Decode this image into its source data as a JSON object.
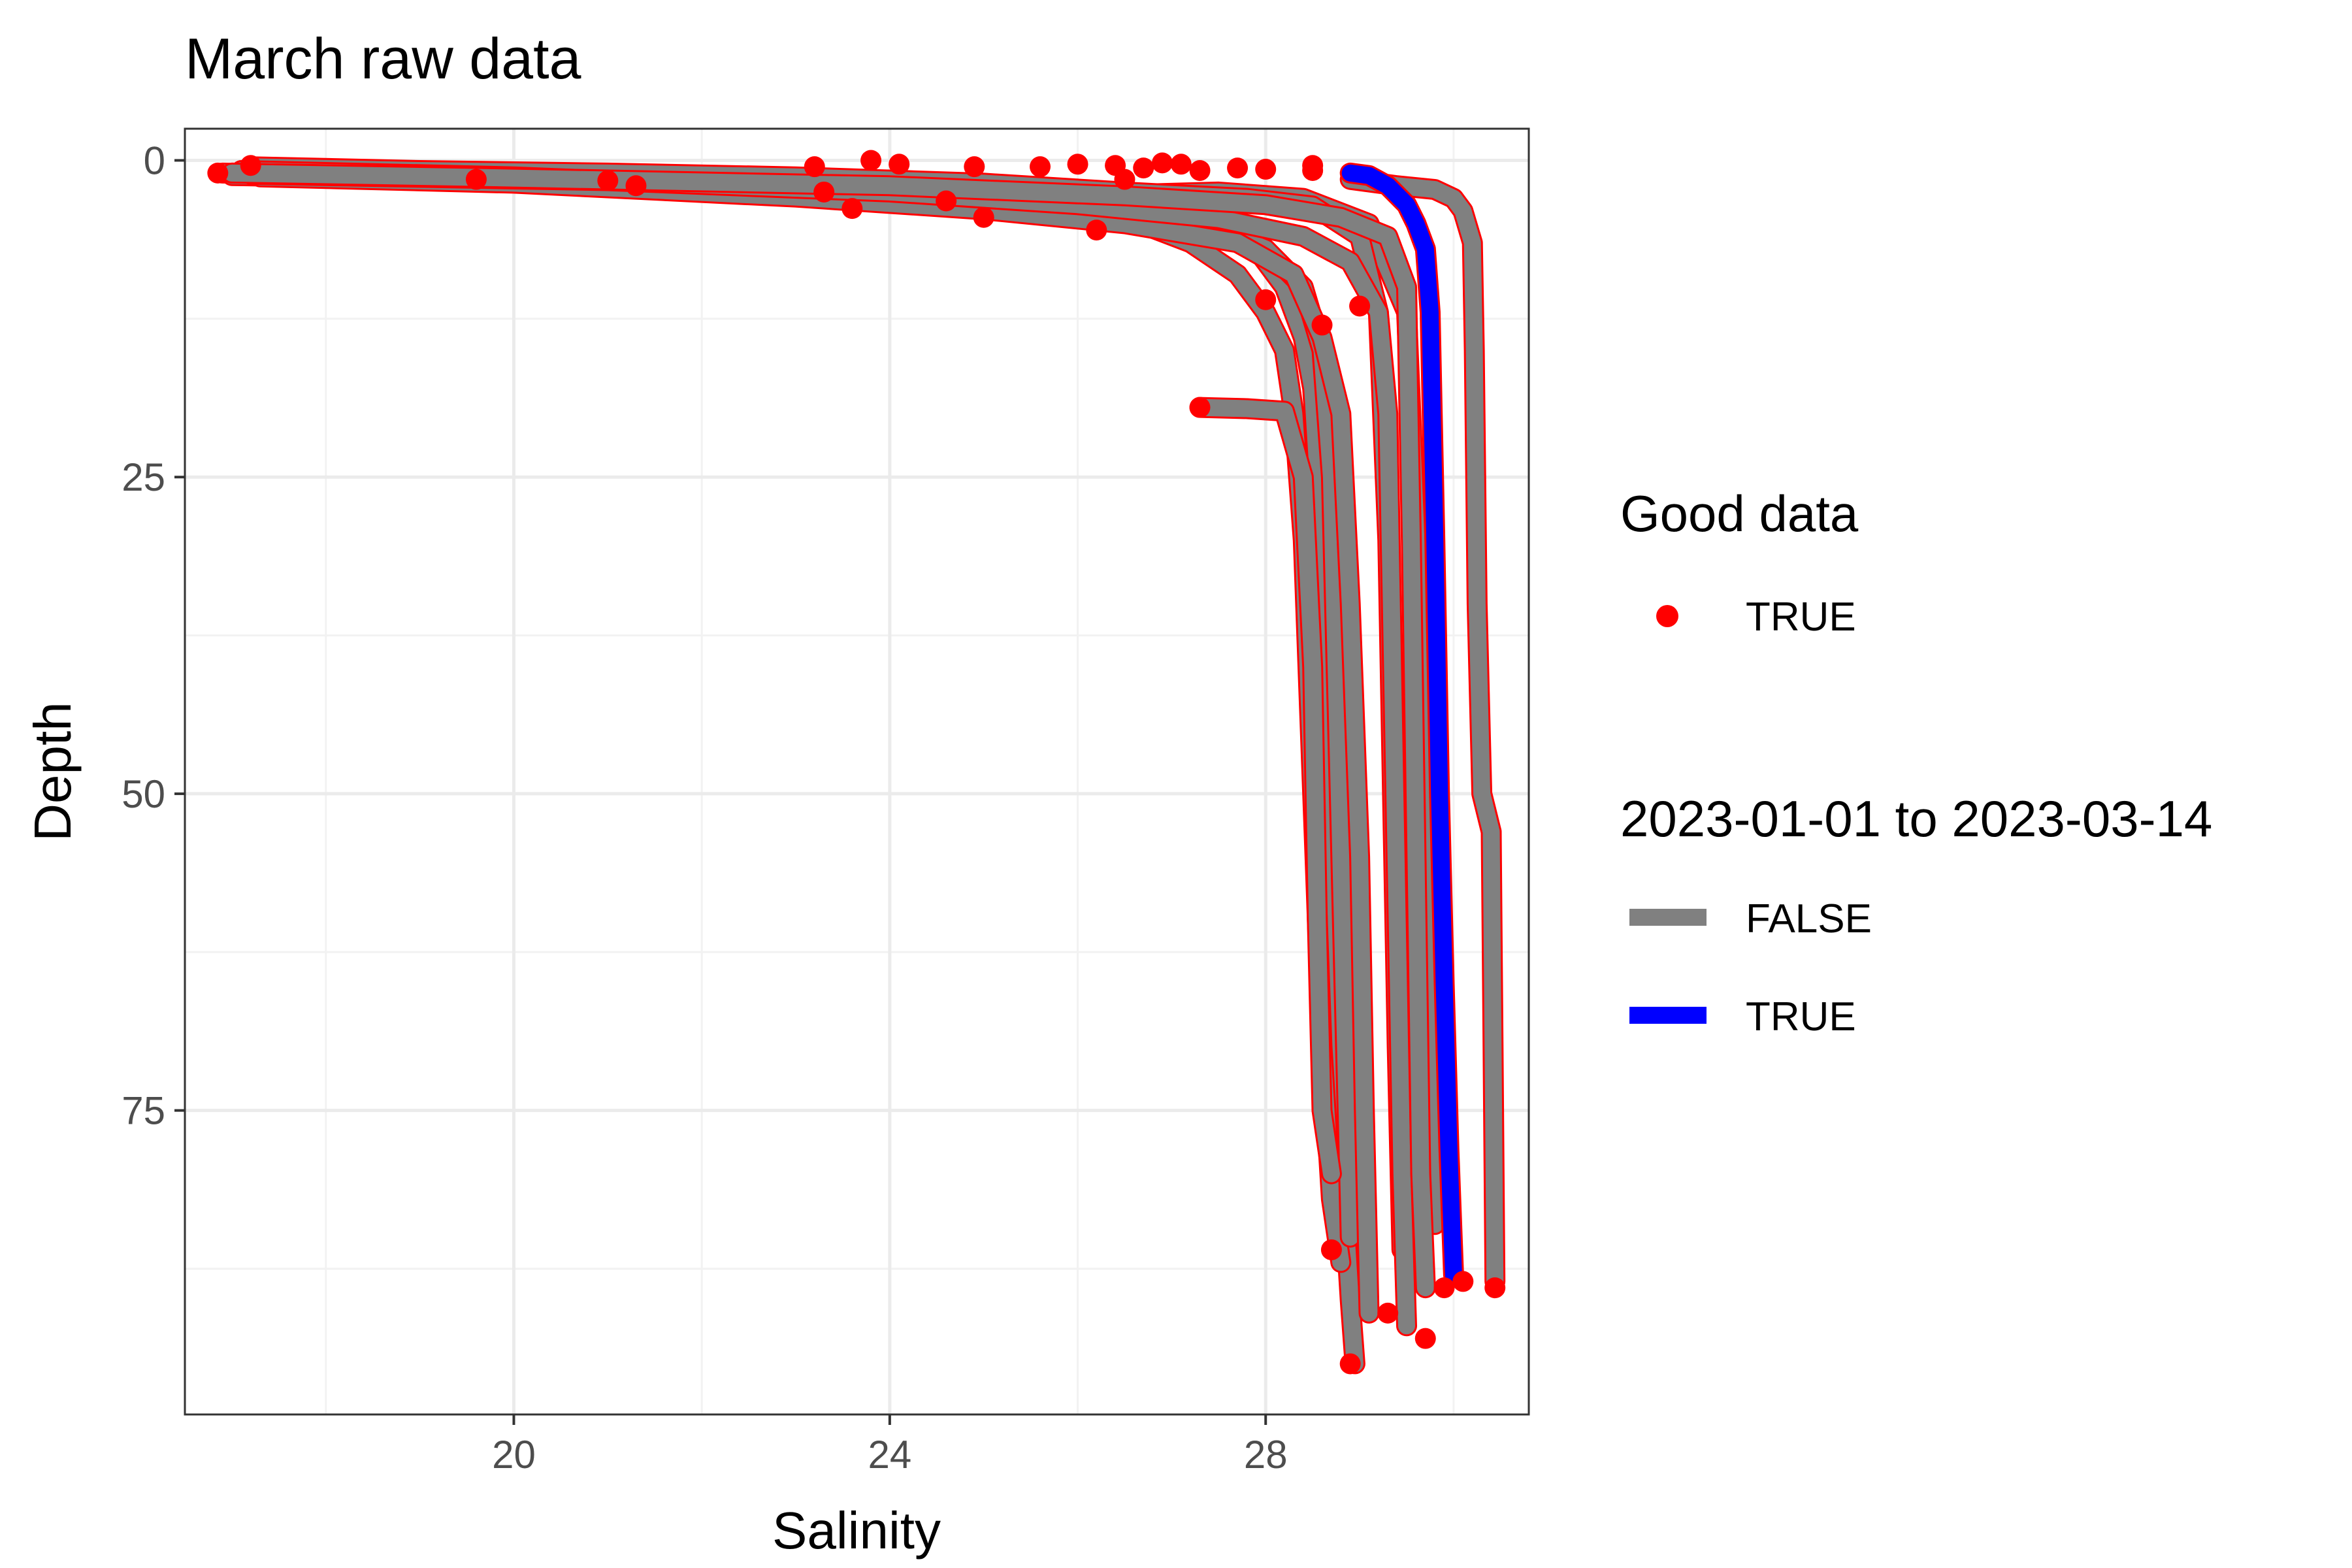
{
  "chart_data": {
    "type": "line",
    "title": "March raw data",
    "xlabel": "Salinity",
    "ylabel": "Depth",
    "xlim": [
      16.5,
      30.8
    ],
    "ylim": [
      99,
      -2.5
    ],
    "y_reversed": true,
    "x_ticks": [
      "20",
      "24",
      "28"
    ],
    "y_ticks": [
      "0",
      "25",
      "50",
      "75"
    ],
    "grid": true,
    "legend_placement": "right",
    "legends": [
      {
        "title": "Good data",
        "entries": [
          {
            "label": "TRUE",
            "kind": "point",
            "color": "#ff0000"
          }
        ]
      },
      {
        "title": "2023-01-01 to 2023-03-14",
        "entries": [
          {
            "label": "FALSE",
            "kind": "line",
            "color": "#808080"
          },
          {
            "label": "TRUE",
            "kind": "line",
            "color": "#0000ff"
          }
        ]
      }
    ],
    "series": [
      {
        "group": "FALSE",
        "color": "#808080",
        "points": [
          [
            16.9,
            1
          ],
          [
            18.5,
            1.2
          ],
          [
            20,
            1.4
          ],
          [
            22,
            1.7
          ],
          [
            24,
            2.2
          ],
          [
            26,
            2.8
          ],
          [
            27.5,
            2.5
          ],
          [
            28.4,
            3
          ],
          [
            29.1,
            5
          ],
          [
            29.5,
            12
          ],
          [
            29.6,
            30
          ],
          [
            29.7,
            50
          ],
          [
            29.75,
            70
          ],
          [
            29.8,
            84
          ]
        ]
      },
      {
        "group": "FALSE",
        "color": "#808080",
        "points": [
          [
            17.2,
            0.5
          ],
          [
            19,
            0.8
          ],
          [
            21,
            1
          ],
          [
            23,
            1.3
          ],
          [
            25,
            1.8
          ],
          [
            26.5,
            2.5
          ],
          [
            27.8,
            3
          ],
          [
            28.5,
            3.6
          ],
          [
            29,
            6
          ],
          [
            29.2,
            12
          ],
          [
            29.3,
            30
          ],
          [
            29.35,
            50
          ],
          [
            29.4,
            70
          ],
          [
            29.45,
            86
          ]
        ]
      },
      {
        "group": "FALSE",
        "color": "#808080",
        "points": [
          [
            17.0,
            1.2
          ],
          [
            19.5,
            1.5
          ],
          [
            21.5,
            1.9
          ],
          [
            23.5,
            2.6
          ],
          [
            25,
            3.5
          ],
          [
            26,
            4
          ],
          [
            27,
            4.6
          ],
          [
            27.8,
            6
          ],
          [
            28.2,
            10
          ],
          [
            28.4,
            14
          ],
          [
            28.5,
            18
          ],
          [
            28.6,
            30
          ],
          [
            28.7,
            50
          ],
          [
            28.75,
            65
          ],
          [
            28.8,
            78
          ],
          [
            28.9,
            90
          ],
          [
            28.95,
            95
          ]
        ]
      },
      {
        "group": "FALSE",
        "color": "#808080",
        "points": [
          [
            17.1,
            0.8
          ],
          [
            20,
            1.3
          ],
          [
            23,
            2.2
          ],
          [
            25.5,
            3.3
          ],
          [
            26.6,
            4.8
          ],
          [
            27.2,
            6.5
          ],
          [
            27.7,
            9
          ],
          [
            28,
            12
          ],
          [
            28.2,
            15
          ],
          [
            28.3,
            20
          ],
          [
            28.4,
            30
          ],
          [
            28.5,
            50
          ],
          [
            28.6,
            70
          ],
          [
            28.7,
            82
          ],
          [
            28.8,
            87
          ]
        ]
      },
      {
        "group": "FALSE",
        "color": "#808080",
        "points": [
          [
            17.0,
            1
          ],
          [
            20.5,
            1.5
          ],
          [
            23.5,
            2.3
          ],
          [
            25.5,
            3.4
          ],
          [
            26.8,
            4.4
          ],
          [
            27.5,
            5.5
          ],
          [
            28,
            7
          ],
          [
            28.4,
            10
          ],
          [
            28.6,
            15
          ],
          [
            28.7,
            25
          ],
          [
            28.75,
            40
          ],
          [
            28.8,
            55
          ],
          [
            28.85,
            70
          ],
          [
            28.9,
            85
          ]
        ]
      },
      {
        "group": "FALSE",
        "color": "#808080",
        "points": [
          [
            17.3,
            1.3
          ],
          [
            20,
            1.8
          ],
          [
            23,
            2.9
          ],
          [
            25,
            3.9
          ],
          [
            26.5,
            5
          ],
          [
            27.7,
            6.5
          ],
          [
            28.3,
            9
          ],
          [
            28.6,
            14
          ],
          [
            28.8,
            20
          ],
          [
            28.9,
            35
          ],
          [
            29,
            55
          ],
          [
            29.05,
            75
          ],
          [
            29.1,
            91
          ]
        ]
      },
      {
        "group": "FALSE",
        "color": "#808080",
        "points": [
          [
            17.2,
            1.1
          ],
          [
            21,
            1.6
          ],
          [
            24,
            2.5
          ],
          [
            26,
            3.5
          ],
          [
            27.5,
            4.6
          ],
          [
            28.4,
            6
          ],
          [
            28.9,
            8
          ],
          [
            29.2,
            12
          ],
          [
            29.3,
            20
          ],
          [
            29.35,
            40
          ],
          [
            29.4,
            60
          ],
          [
            29.45,
            80
          ],
          [
            29.5,
            92
          ]
        ]
      },
      {
        "group": "FALSE",
        "color": "#808080",
        "points": [
          [
            17.0,
            1
          ],
          [
            20,
            1.4
          ],
          [
            24,
            2
          ],
          [
            26.5,
            2.8
          ],
          [
            28,
            3.5
          ],
          [
            28.8,
            4.5
          ],
          [
            29.3,
            6
          ],
          [
            29.5,
            10
          ],
          [
            29.55,
            30
          ],
          [
            29.6,
            55
          ],
          [
            29.65,
            80
          ],
          [
            29.7,
            89
          ]
        ]
      },
      {
        "group": "FALSE",
        "color": "#808080",
        "points": [
          [
            27.3,
            19.5
          ],
          [
            27.8,
            19.6
          ],
          [
            28.2,
            19.8
          ],
          [
            28.4,
            25
          ],
          [
            28.5,
            40
          ],
          [
            28.55,
            60
          ],
          [
            28.6,
            75
          ],
          [
            28.7,
            80
          ]
        ]
      },
      {
        "group": "FALSE",
        "color": "#808080",
        "points": [
          [
            28.9,
            1.5
          ],
          [
            29.4,
            2
          ],
          [
            29.8,
            2.3
          ],
          [
            30,
            3
          ],
          [
            30.1,
            4
          ],
          [
            30.2,
            6.5
          ],
          [
            30.22,
            15
          ],
          [
            30.25,
            35
          ],
          [
            30.3,
            50
          ],
          [
            30.4,
            53
          ],
          [
            30.42,
            70
          ],
          [
            30.44,
            88.5
          ]
        ]
      },
      {
        "group": "TRUE",
        "color": "#0000ff",
        "points": [
          [
            28.9,
            1
          ],
          [
            29.1,
            1.2
          ],
          [
            29.3,
            2
          ],
          [
            29.5,
            3.5
          ],
          [
            29.6,
            5
          ],
          [
            29.7,
            7
          ],
          [
            29.75,
            12
          ],
          [
            29.8,
            30
          ],
          [
            29.85,
            50
          ],
          [
            29.9,
            65
          ],
          [
            29.95,
            78
          ],
          [
            30.0,
            88
          ]
        ]
      }
    ],
    "red_points": [
      [
        16.85,
        1
      ],
      [
        17.2,
        0.4
      ],
      [
        19.6,
        1.5
      ],
      [
        21.0,
        1.6
      ],
      [
        21.3,
        2
      ],
      [
        23.2,
        0.5
      ],
      [
        23.3,
        2.5
      ],
      [
        23.6,
        3.8
      ],
      [
        23.8,
        0
      ],
      [
        24.1,
        0.3
      ],
      [
        24.6,
        3.2
      ],
      [
        24.9,
        0.5
      ],
      [
        25.0,
        4.5
      ],
      [
        25.6,
        0.5
      ],
      [
        26.0,
        0.3
      ],
      [
        26.2,
        5.5
      ],
      [
        26.4,
        0.4
      ],
      [
        26.5,
        1.5
      ],
      [
        26.7,
        0.6
      ],
      [
        26.9,
        0.2
      ],
      [
        27.1,
        0.3
      ],
      [
        27.3,
        0.8
      ],
      [
        27.3,
        19.5
      ],
      [
        27.7,
        0.6
      ],
      [
        28.0,
        0.7
      ],
      [
        28.5,
        0.4
      ],
      [
        28.0,
        11
      ],
      [
        28.6,
        13
      ],
      [
        29.0,
        11.5
      ],
      [
        28.5,
        0.8
      ],
      [
        28.7,
        86
      ],
      [
        28.9,
        95
      ],
      [
        29.3,
        91
      ],
      [
        29.7,
        93
      ],
      [
        29.9,
        89
      ],
      [
        30.1,
        88.5
      ],
      [
        30.44,
        89
      ]
    ]
  }
}
